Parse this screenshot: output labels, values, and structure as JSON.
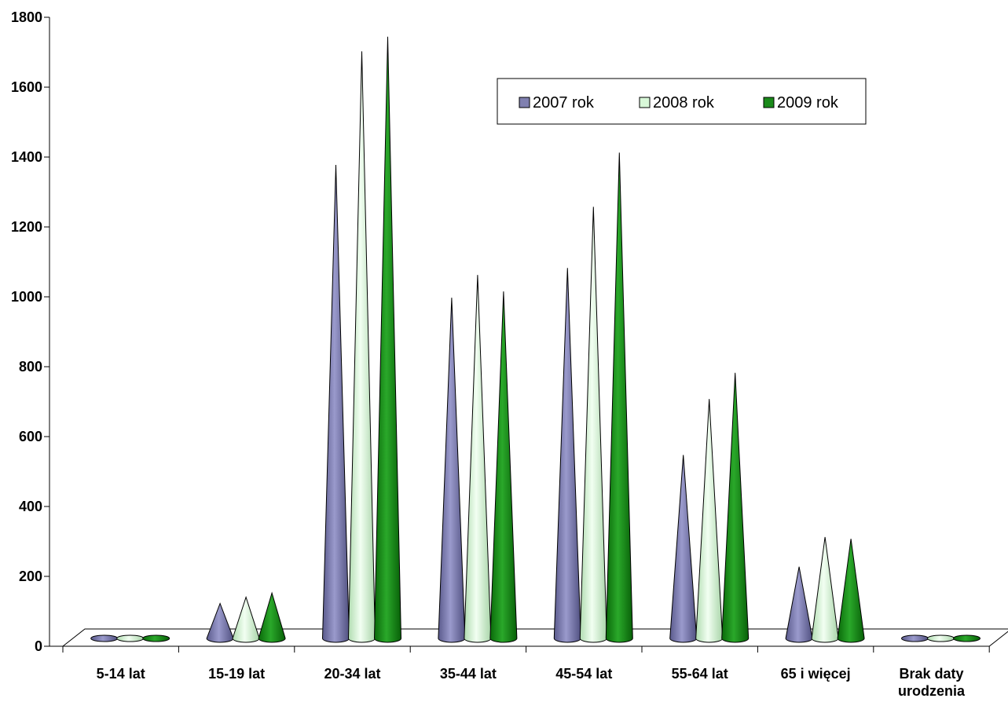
{
  "chart_data": {
    "type": "bar",
    "style": "3d-cone",
    "title": "",
    "xlabel": "",
    "ylabel": "",
    "ylim": [
      0,
      1800
    ],
    "yticks": [
      0,
      200,
      400,
      600,
      800,
      1000,
      1200,
      1400,
      1600,
      1800
    ],
    "grid": false,
    "legend_position": "top-right",
    "categories": [
      [
        "5-14 lat"
      ],
      [
        "15-19 lat"
      ],
      [
        "20-34 lat"
      ],
      [
        "35-44 lat"
      ],
      [
        "45-54 lat"
      ],
      [
        "55-64 lat"
      ],
      [
        "65 i więcej"
      ],
      [
        "Brak daty",
        "urodzenia"
      ]
    ],
    "series": [
      {
        "name": "2007 rok",
        "color": "#8080b0",
        "values": [
          0,
          100,
          1355,
          975,
          1060,
          525,
          205,
          0
        ]
      },
      {
        "name": "2008 rok",
        "color": "#d8f8d8",
        "values": [
          0,
          118,
          1680,
          1040,
          1235,
          685,
          290,
          0
        ]
      },
      {
        "name": "2009 rok",
        "color": "#1a8a1a",
        "values": [
          0,
          130,
          1722,
          993,
          1390,
          760,
          285,
          0
        ]
      }
    ]
  }
}
